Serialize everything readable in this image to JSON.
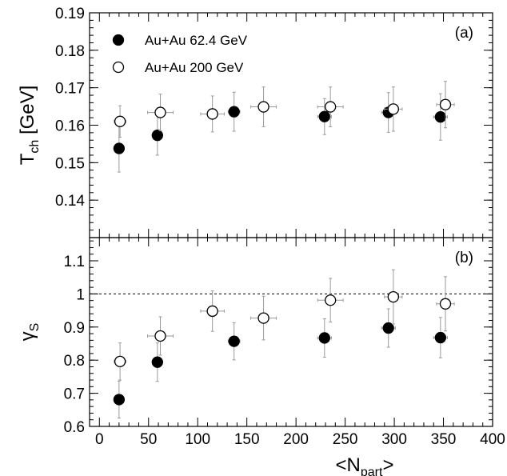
{
  "chart_data": {
    "type": "scatter",
    "xlabel": "<N",
    "xlabel_sub": "part",
    "xlabel_close": ">",
    "xlim": [
      -10,
      400
    ],
    "xticks": [
      0,
      50,
      100,
      150,
      200,
      250,
      300,
      350,
      400
    ],
    "legend": {
      "position": "top-left",
      "entries": [
        {
          "name": "Au+Au 62.4 GeV",
          "marker": "filled-circle"
        },
        {
          "name": "Au+Au 200 GeV",
          "marker": "open-circle"
        }
      ]
    },
    "panels": [
      {
        "id": "top",
        "panel_label": "(a)",
        "ylabel_main": "T",
        "ylabel_sub": "ch",
        "ylabel_unit": " [GeV]",
        "ylim": [
          0.13,
          0.19
        ],
        "yticks": [
          0.14,
          0.15,
          0.16,
          0.17,
          0.18,
          0.19
        ],
        "series": [
          {
            "name": "Au+Au 62.4 GeV",
            "points": [
              {
                "x": 20,
                "y": 0.1538,
                "yerr": 0.0063,
                "xerr": 5
              },
              {
                "x": 59,
                "y": 0.1573,
                "yerr": 0.0053,
                "xerr": 5
              },
              {
                "x": 137,
                "y": 0.1636,
                "yerr": 0.0052,
                "xerr": 6
              },
              {
                "x": 229,
                "y": 0.1623,
                "yerr": 0.0048,
                "xerr": 7
              },
              {
                "x": 294,
                "y": 0.1634,
                "yerr": 0.0053,
                "xerr": 7
              },
              {
                "x": 347,
                "y": 0.1622,
                "yerr": 0.0062,
                "xerr": 7
              }
            ]
          },
          {
            "name": "Au+Au 200 GeV",
            "points": [
              {
                "x": 21,
                "y": 0.161,
                "yerr": 0.0042,
                "xerr": 6
              },
              {
                "x": 62,
                "y": 0.1634,
                "yerr": 0.0049,
                "xerr": 13
              },
              {
                "x": 115,
                "y": 0.163,
                "yerr": 0.0048,
                "xerr": 12
              },
              {
                "x": 167,
                "y": 0.1649,
                "yerr": 0.0053,
                "xerr": 13
              },
              {
                "x": 235,
                "y": 0.1649,
                "yerr": 0.0053,
                "xerr": 13
              },
              {
                "x": 299,
                "y": 0.1643,
                "yerr": 0.0059,
                "xerr": 9
              },
              {
                "x": 352,
                "y": 0.1655,
                "yerr": 0.0062,
                "xerr": 9
              }
            ]
          }
        ]
      },
      {
        "id": "bottom",
        "panel_label": "(b)",
        "ylabel_main": "γ",
        "ylabel_sub": "S",
        "ylabel_unit": "",
        "ylim": [
          0.6,
          1.17
        ],
        "yticks": [
          0.6,
          0.7,
          0.8,
          0.9,
          1,
          1.1
        ],
        "reference_line_y": 1.0,
        "series": [
          {
            "name": "Au+Au 62.4 GeV",
            "points": [
              {
                "x": 20,
                "y": 0.681,
                "yerr": 0.056,
                "xerr": 5
              },
              {
                "x": 59,
                "y": 0.794,
                "yerr": 0.058,
                "xerr": 5
              },
              {
                "x": 137,
                "y": 0.857,
                "yerr": 0.056,
                "xerr": 6
              },
              {
                "x": 229,
                "y": 0.867,
                "yerr": 0.058,
                "xerr": 7
              },
              {
                "x": 294,
                "y": 0.897,
                "yerr": 0.058,
                "xerr": 7
              },
              {
                "x": 347,
                "y": 0.868,
                "yerr": 0.061,
                "xerr": 7
              }
            ]
          },
          {
            "name": "Au+Au 200 GeV",
            "points": [
              {
                "x": 21,
                "y": 0.796,
                "yerr": 0.056,
                "xerr": 6
              },
              {
                "x": 62,
                "y": 0.873,
                "yerr": 0.058,
                "xerr": 13
              },
              {
                "x": 115,
                "y": 0.948,
                "yerr": 0.061,
                "xerr": 12
              },
              {
                "x": 167,
                "y": 0.927,
                "yerr": 0.066,
                "xerr": 13
              },
              {
                "x": 235,
                "y": 0.981,
                "yerr": 0.066,
                "xerr": 13
              },
              {
                "x": 299,
                "y": 0.991,
                "yerr": 0.082,
                "xerr": 9
              },
              {
                "x": 352,
                "y": 0.97,
                "yerr": 0.082,
                "xerr": 9
              }
            ]
          }
        ]
      }
    ]
  }
}
